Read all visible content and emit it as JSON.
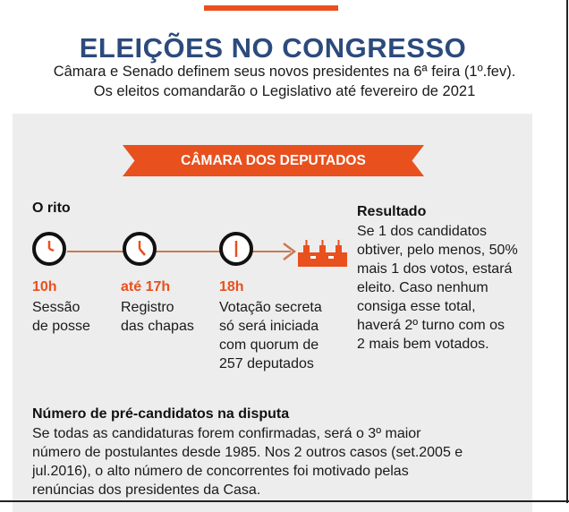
{
  "header": {
    "title": "ELEIÇÕES NO CONGRESSO",
    "subtitle_line1": "Câmara e Senado definem seus novos presidentes na 6ª feira (1º.fev).",
    "subtitle_line2": "Os eleitos comandarão o Legislativo até fevereiro de 2021"
  },
  "banner": {
    "label": "CÂMARA DOS DEPUTADOS"
  },
  "rito": {
    "title": "O rito",
    "steps": [
      {
        "time": "10h",
        "text_line1": "Sessão",
        "text_line2": "de posse",
        "icon": "clock-icon"
      },
      {
        "time": "até 17h",
        "text_line1": "Registro",
        "text_line2": "das chapas",
        "icon": "clock-icon"
      },
      {
        "time": "18h",
        "text_line1": "Votação secreta",
        "text_line2": "só será iniciada",
        "text_line3": "com quorum de",
        "text_line4": "257 deputados",
        "icon": "clock-icon"
      }
    ],
    "end_icon": "congress-building-icon"
  },
  "resultado": {
    "title": "Resultado",
    "lines": [
      "Se 1 dos candidatos",
      "obtiver, pelo menos, 50%",
      "mais 1 dos votos, estará",
      "eleito. Caso nenhum",
      "consiga esse total,",
      "haverá 2º turno com os",
      "2 mais bem votados."
    ]
  },
  "numero": {
    "title": "Número de pré-candidatos na disputa",
    "lines": [
      "Se todas as candidaturas forem confirmadas, será o 3º maior",
      "número de postulantes desde 1985. Nos 2 outros casos (set.2005 e",
      "jul.2016), o alto número de concorrentes foi motivado pelas",
      "renúncias dos presidentes da Casa."
    ]
  },
  "colors": {
    "accent": "#e8501e",
    "title": "#2c4a7c",
    "panel": "#ededed"
  }
}
